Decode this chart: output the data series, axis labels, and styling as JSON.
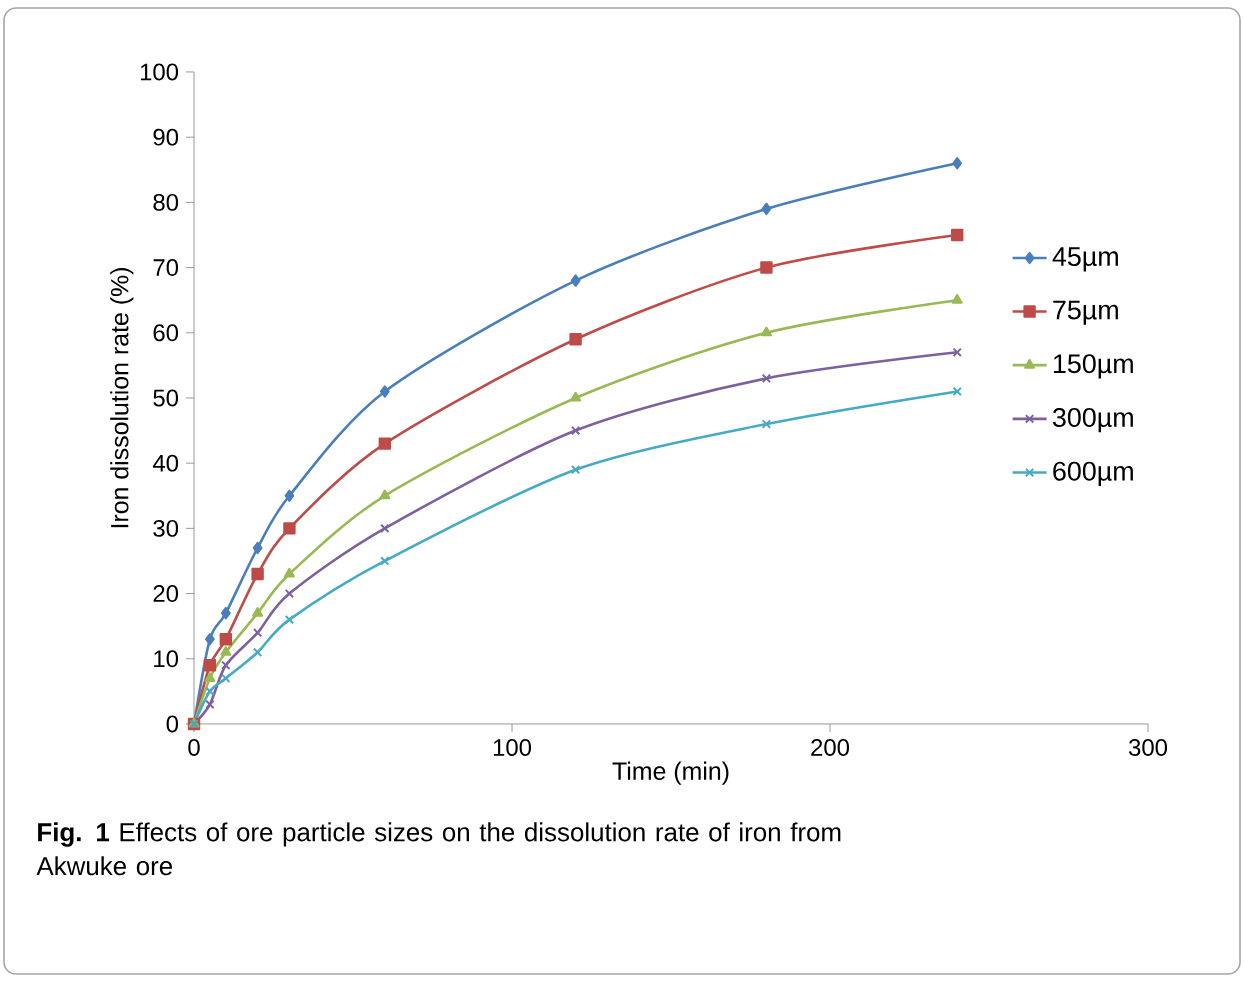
{
  "chart_data": {
    "type": "line",
    "xlabel": "Time (min)",
    "ylabel": "Iron dissolution rate (%)",
    "x": [
      0,
      5,
      10,
      20,
      30,
      60,
      120,
      180,
      240
    ],
    "series": [
      {
        "name": "45µm",
        "color": "#4a7ebb",
        "marker": "diamond",
        "values": [
          0,
          13,
          17,
          27,
          35,
          51,
          68,
          79,
          86
        ]
      },
      {
        "name": "75µm",
        "color": "#be4b48",
        "marker": "square",
        "values": [
          0,
          9,
          13,
          23,
          30,
          43,
          59,
          70,
          75
        ]
      },
      {
        "name": "150µm",
        "color": "#98b954",
        "marker": "triangle",
        "values": [
          0,
          7,
          11,
          17,
          23,
          35,
          50,
          60,
          65
        ]
      },
      {
        "name": "300µm",
        "color": "#7d60a0",
        "marker": "cross",
        "values": [
          0,
          3,
          9,
          14,
          20,
          30,
          45,
          53,
          57
        ]
      },
      {
        "name": "600µm",
        "color": "#46aac5",
        "marker": "cross",
        "values": [
          0,
          5,
          7,
          11,
          16,
          25,
          39,
          46,
          51
        ]
      }
    ],
    "xlim": [
      0,
      300
    ],
    "ylim": [
      0,
      100
    ],
    "xticks": [
      0,
      100,
      200,
      300
    ],
    "yticks": [
      0,
      10,
      20,
      30,
      40,
      50,
      60,
      70,
      80,
      90,
      100
    ],
    "legend": "right",
    "grid": false,
    "annotations": [
      "**Fig. 1** Effects of ore particle sizes on the dissolution rate of iron from Akwuke ore"
    ]
  }
}
